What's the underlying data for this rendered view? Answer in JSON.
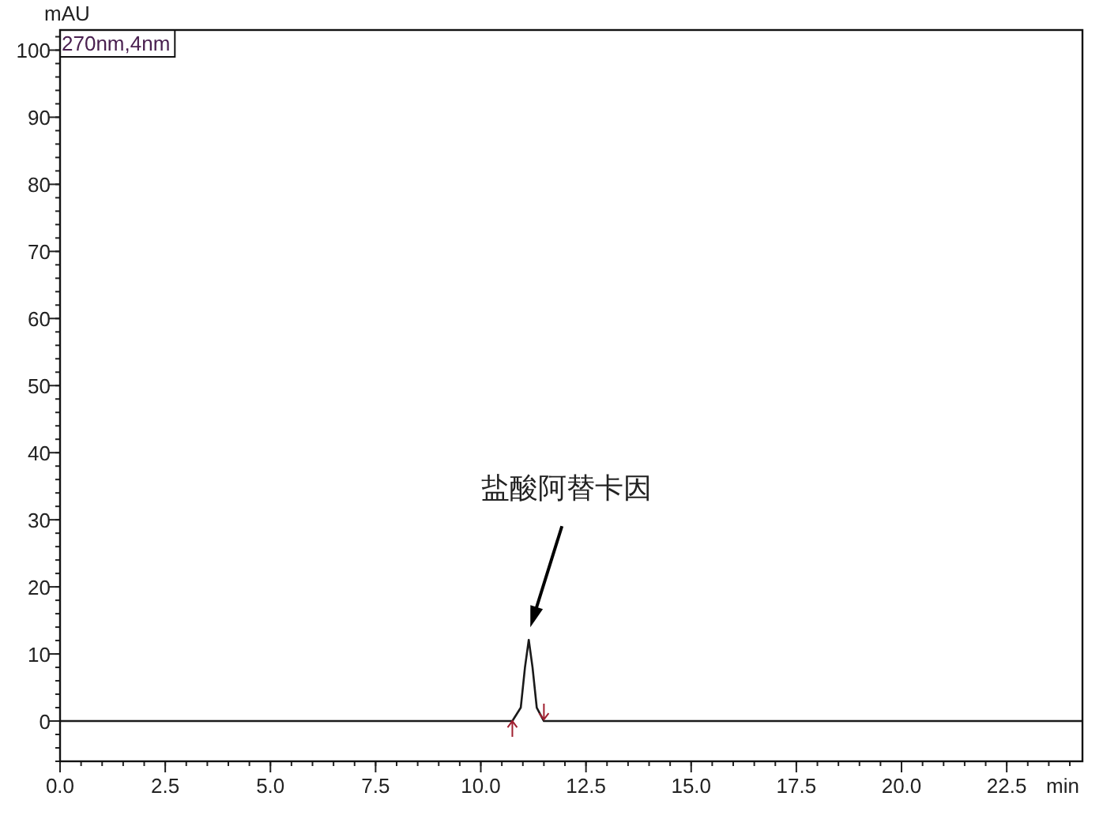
{
  "chart_data": {
    "type": "line",
    "ylabel": "mAU",
    "xlabel": "min",
    "xlim": [
      0,
      24.3
    ],
    "ylim": [
      -6,
      103
    ],
    "xticks": [
      {
        "value": 0,
        "label": "0.0"
      },
      2.5,
      {
        "value": 5,
        "label": "5.0"
      },
      7.5,
      {
        "value": 10,
        "label": "10.0"
      },
      12.5,
      {
        "value": 15,
        "label": "15.0"
      },
      17.5,
      {
        "value": 20,
        "label": "20.0"
      },
      22.5
    ],
    "yticks": [
      0,
      10,
      20,
      30,
      40,
      50,
      60,
      70,
      80,
      90,
      100
    ],
    "series": [
      {
        "name": "270nm,4nm",
        "color": "#1a1a1a",
        "x": [
          0,
          10.75,
          10.95,
          11.05,
          11.14,
          11.23,
          11.33,
          11.5,
          24.3
        ],
        "values": [
          0,
          0,
          2,
          8,
          12.1,
          8,
          2,
          0,
          0
        ]
      }
    ],
    "annotations": [
      "盐酸阿替卡因"
    ],
    "legend": "top left",
    "marker": "none",
    "line_style": "solid",
    "grid": false
  }
}
